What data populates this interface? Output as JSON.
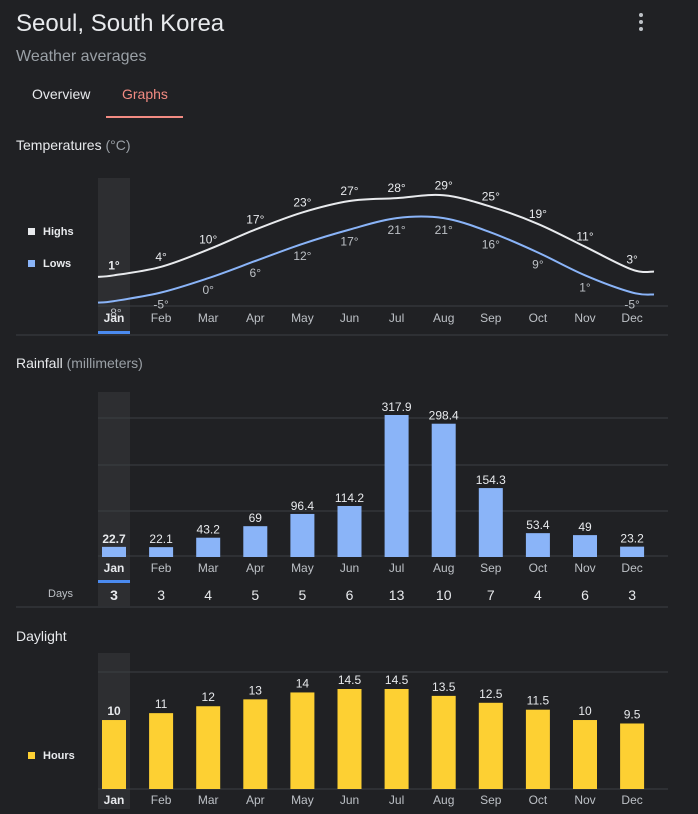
{
  "header": {
    "title": "Seoul, South Korea",
    "subtitle": "Weather averages",
    "menu_icon": "more-vert-icon"
  },
  "tabs": [
    {
      "label": "Overview",
      "active": false
    },
    {
      "label": "Graphs",
      "active": true
    }
  ],
  "colors": {
    "accent": "#f28b82",
    "highs": "#e8eaed",
    "lows": "#8ab4f8",
    "rain_bar": "#8ab4f8",
    "daylight_bar": "#fdd033",
    "selected_bg": "#2d2e31",
    "selected_indicator": "#4b8bf0"
  },
  "months": [
    "Jan",
    "Feb",
    "Mar",
    "Apr",
    "May",
    "Jun",
    "Jul",
    "Aug",
    "Sep",
    "Oct",
    "Nov",
    "Dec"
  ],
  "selected_month_index": 0,
  "temperature": {
    "title": "Temperatures",
    "unit": "(°C)"
  },
  "rainfall": {
    "title": "Rainfall",
    "unit": "(millimeters)",
    "days_label": "Days"
  },
  "daylight": {
    "title": "Daylight"
  },
  "chart_data": [
    {
      "type": "line",
      "title": "Temperatures (°C)",
      "categories": [
        "Jan",
        "Feb",
        "Mar",
        "Apr",
        "May",
        "Jun",
        "Jul",
        "Aug",
        "Sep",
        "Oct",
        "Nov",
        "Dec"
      ],
      "series": [
        {
          "name": "Highs",
          "values": [
            1,
            4,
            10,
            17,
            23,
            27,
            28,
            29,
            25,
            19,
            11,
            3
          ],
          "labels": [
            "1°",
            "4°",
            "10°",
            "17°",
            "23°",
            "27°",
            "28°",
            "29°",
            "25°",
            "19°",
            "11°",
            "3°"
          ]
        },
        {
          "name": "Lows",
          "values": [
            -8,
            -5,
            0,
            6,
            12,
            17,
            21,
            21,
            16,
            9,
            1,
            -5
          ],
          "labels": [
            "-8°",
            "-5°",
            "0°",
            "6°",
            "12°",
            "17°",
            "21°",
            "21°",
            "16°",
            "9°",
            "1°",
            "-5°"
          ]
        }
      ],
      "legend": "left"
    },
    {
      "type": "bar",
      "title": "Rainfall (millimeters)",
      "categories": [
        "Jan",
        "Feb",
        "Mar",
        "Apr",
        "May",
        "Jun",
        "Jul",
        "Aug",
        "Sep",
        "Oct",
        "Nov",
        "Dec"
      ],
      "values": [
        22.7,
        22.1,
        43.2,
        69,
        96.4,
        114.2,
        317.9,
        298.4,
        154.3,
        53.4,
        49,
        23.2
      ],
      "labels": [
        "22.7",
        "22.1",
        "43.2",
        "69",
        "96.4",
        "114.2",
        "317.9",
        "298.4",
        "154.3",
        "53.4",
        "49",
        "23.2"
      ],
      "days": [
        3,
        3,
        4,
        5,
        5,
        6,
        13,
        10,
        7,
        4,
        6,
        3
      ],
      "grid": true
    },
    {
      "type": "bar",
      "title": "Daylight",
      "categories": [
        "Jan",
        "Feb",
        "Mar",
        "Apr",
        "May",
        "Jun",
        "Jul",
        "Aug",
        "Sep",
        "Oct",
        "Nov",
        "Dec"
      ],
      "series": [
        {
          "name": "Hours",
          "values": [
            10,
            11,
            12,
            13,
            14,
            14.5,
            14.5,
            13.5,
            12.5,
            11.5,
            10,
            9.5
          ]
        }
      ],
      "labels": [
        "10",
        "11",
        "12",
        "13",
        "14",
        "14.5",
        "14.5",
        "13.5",
        "12.5",
        "11.5",
        "10",
        "9.5"
      ],
      "legend": "left",
      "grid": true
    }
  ]
}
